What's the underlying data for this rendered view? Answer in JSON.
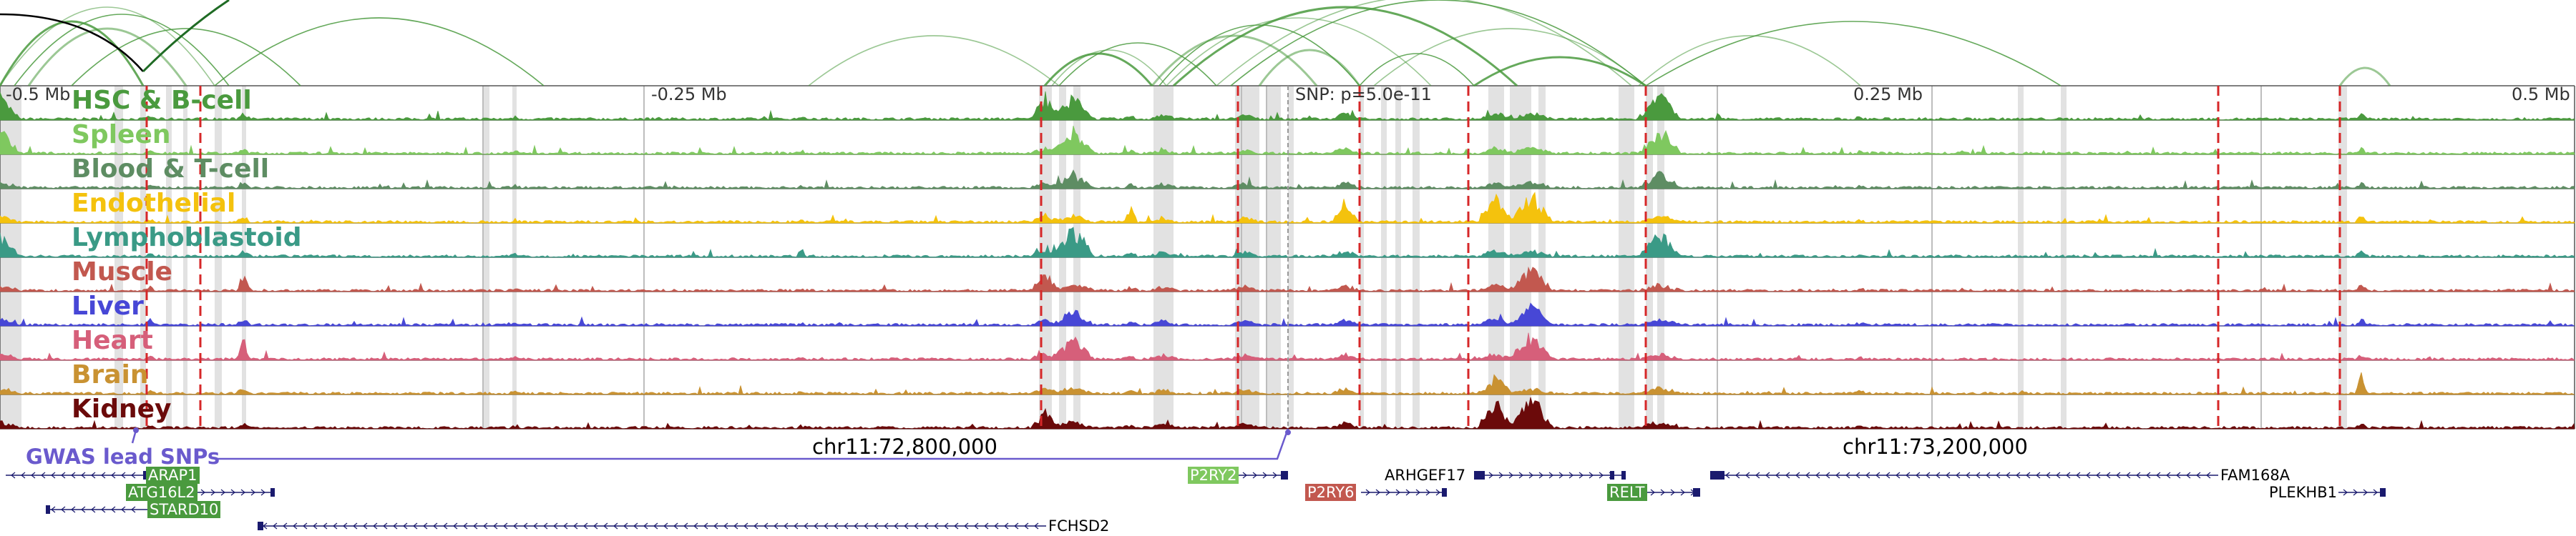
{
  "scale_labels": [
    "-0.5 Mb",
    "-0.25 Mb",
    "0.25 Mb",
    "0.5 Mb"
  ],
  "snp_label": "SNP: p=5.0e-11",
  "gwas_label": "GWAS lead SNPs",
  "chromosome_labels": [
    "chr11:72,800,000",
    "chr11:73,200,000"
  ],
  "tracks": [
    {
      "name": "HSC & B-cell",
      "color": "#4a9a3e"
    },
    {
      "name": "Spleen",
      "color": "#7fc85f"
    },
    {
      "name": "Blood & T-cell",
      "color": "#5e8d63"
    },
    {
      "name": "Endothelial",
      "color": "#f4c20d"
    },
    {
      "name": "Lymphoblastoid",
      "color": "#3a9a86"
    },
    {
      "name": "Muscle",
      "color": "#c2584f"
    },
    {
      "name": "Liver",
      "color": "#4747d6"
    },
    {
      "name": "Heart",
      "color": "#d65f7a"
    },
    {
      "name": "Brain",
      "color": "#c99232"
    },
    {
      "name": "Kidney",
      "color": "#6b0a0a"
    }
  ],
  "genes": [
    {
      "name": "ARAP1",
      "style": "boxed",
      "color": "#4a9a3e"
    },
    {
      "name": "ATG16L2",
      "style": "boxed",
      "color": "#4a9a3e"
    },
    {
      "name": "STARD10",
      "style": "boxed",
      "color": "#4a9a3e"
    },
    {
      "name": "FCHSD2",
      "style": "plain",
      "color": "#000000"
    },
    {
      "name": "P2RY2",
      "style": "boxed",
      "color": "#7fc85f"
    },
    {
      "name": "P2RY6",
      "style": "boxed",
      "color": "#c2584f"
    },
    {
      "name": "ARHGEF17",
      "style": "plain",
      "color": "#000000"
    },
    {
      "name": "RELT",
      "style": "boxed",
      "color": "#4a9a3e"
    },
    {
      "name": "FAM168A",
      "style": "plain",
      "color": "#000000"
    },
    {
      "name": "PLEKHB1",
      "style": "plain",
      "color": "#000000"
    }
  ],
  "colors": {
    "loop_arc": "#4a9a3e",
    "highlight_band": "#e2e2e2",
    "snp_marker": "#d62728",
    "gene_structure": "#1a1a6e",
    "gwas_line": "#6a5acd"
  }
}
